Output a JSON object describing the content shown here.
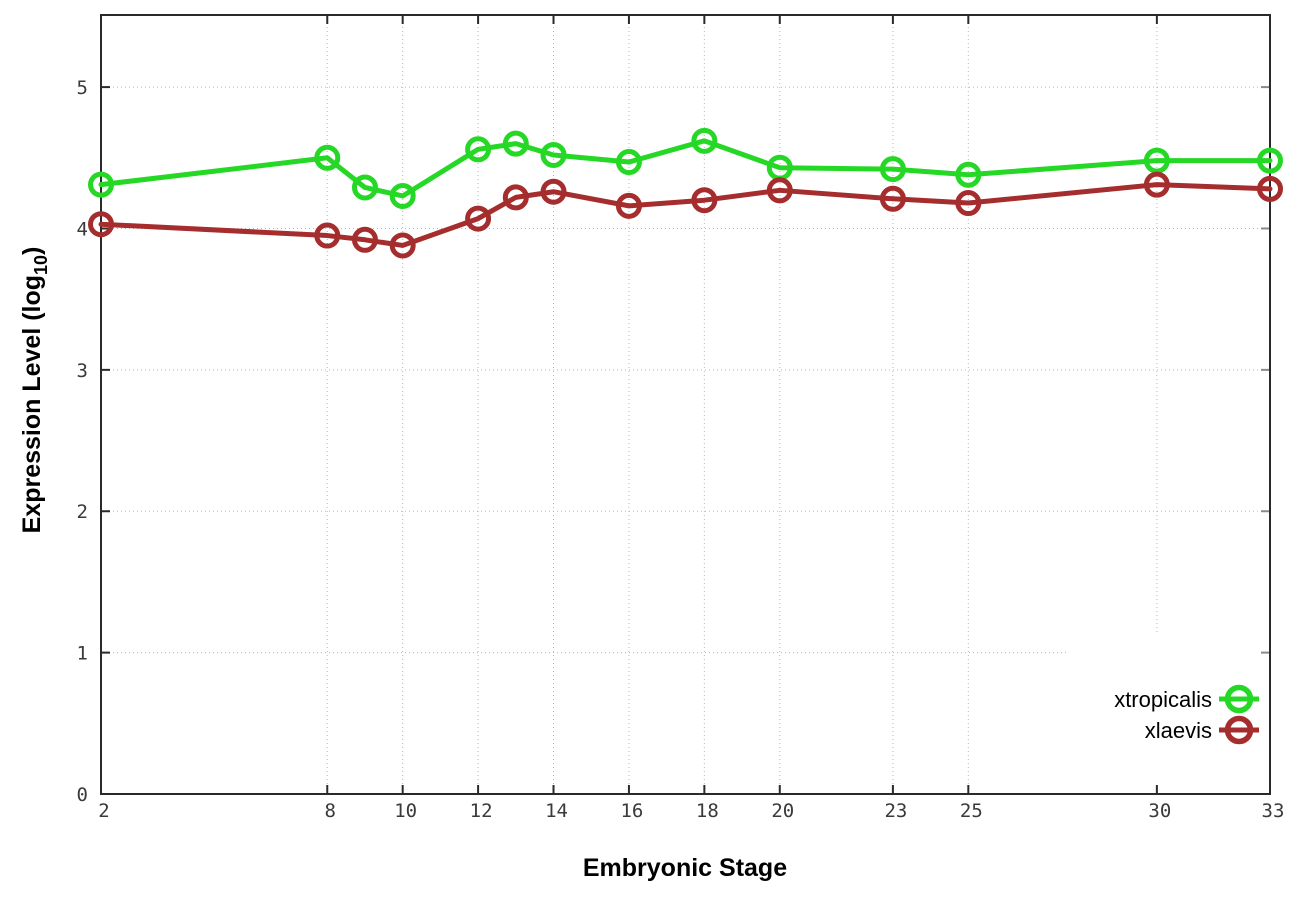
{
  "chart_data": {
    "type": "line",
    "title": "",
    "xlabel": "Embryonic Stage",
    "ylabel": "Expression Level (log10)",
    "ylabel_parts": {
      "pre": "Expression Level (log",
      "sub": "10",
      "post": ")"
    },
    "x": [
      2,
      8,
      9,
      10,
      12,
      13,
      14,
      16,
      18,
      20,
      23,
      25,
      30,
      33
    ],
    "series": [
      {
        "name": "xtropicalis",
        "color": "#25d825",
        "values": [
          4.31,
          4.5,
          4.29,
          4.23,
          4.56,
          4.6,
          4.52,
          4.47,
          4.62,
          4.43,
          4.42,
          4.38,
          4.48,
          4.48
        ]
      },
      {
        "name": "xlaevis",
        "color": "#a52d2d",
        "values": [
          4.03,
          3.95,
          3.92,
          3.88,
          4.07,
          4.22,
          4.26,
          4.16,
          4.2,
          4.27,
          4.21,
          4.18,
          4.31,
          4.28
        ]
      }
    ],
    "xticks": [
      2,
      8,
      10,
      12,
      14,
      16,
      18,
      20,
      23,
      25,
      30,
      33
    ],
    "yticks": [
      0,
      1,
      2,
      3,
      4,
      5
    ],
    "xlim": [
      2,
      33
    ],
    "ylim": [
      0,
      5.51
    ],
    "grid": true,
    "legend_position": "bottom-right",
    "marker": "open-circle",
    "colors": {
      "grid": "#b8b8b8",
      "axis_border": "#2a2a2a",
      "tick_label": "#3a3a3a",
      "background": "#ffffff"
    }
  }
}
